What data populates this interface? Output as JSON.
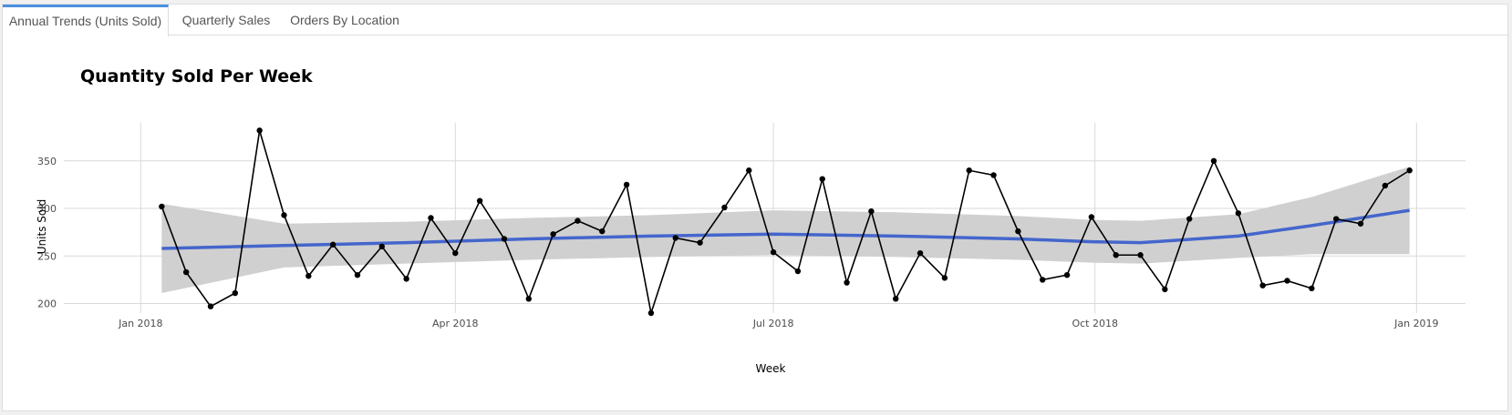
{
  "tabs": [
    {
      "label": "Annual Trends (Units Sold)",
      "active": true
    },
    {
      "label": "Quarterly Sales",
      "active": false
    },
    {
      "label": "Orders By Location",
      "active": false
    }
  ],
  "colors": {
    "tab_accent": "#4a90e2",
    "line": "#000000",
    "trend": "#4466cc",
    "band": "#d0d0d0",
    "grid": "#d9d9d9"
  },
  "chart_data": {
    "type": "line",
    "title": "Quantity Sold Per Week",
    "xlabel": "Week",
    "ylabel": "Units Sold",
    "ylim": [
      190,
      390
    ],
    "xlim": [
      "2017-12-10",
      "2019-01-15"
    ],
    "grid": true,
    "x_ticks": [
      "2018-01-01",
      "2018-04-01",
      "2018-07-01",
      "2018-10-01",
      "2019-01-01"
    ],
    "x_tick_labels": [
      "Jan 2018",
      "Apr 2018",
      "Jul 2018",
      "Oct 2018",
      "Jan 2019"
    ],
    "y_ticks": [
      200,
      250,
      300,
      350
    ],
    "series": [
      {
        "x": [
          "2018-01-07",
          "2018-01-14",
          "2018-01-21",
          "2018-01-28",
          "2018-02-04",
          "2018-02-11",
          "2018-02-18",
          "2018-02-25",
          "2018-03-04",
          "2018-03-11",
          "2018-03-18",
          "2018-03-25",
          "2018-04-01",
          "2018-04-08",
          "2018-04-15",
          "2018-04-22",
          "2018-04-29",
          "2018-05-06",
          "2018-05-13",
          "2018-05-20",
          "2018-05-27",
          "2018-06-03",
          "2018-06-10",
          "2018-06-17",
          "2018-06-24",
          "2018-07-01",
          "2018-07-08",
          "2018-07-15",
          "2018-07-22",
          "2018-07-29",
          "2018-08-05",
          "2018-08-12",
          "2018-08-19",
          "2018-08-26",
          "2018-09-02",
          "2018-09-09",
          "2018-09-16",
          "2018-09-23",
          "2018-09-30",
          "2018-10-07",
          "2018-10-14",
          "2018-10-21",
          "2018-10-28",
          "2018-11-04",
          "2018-11-11",
          "2018-11-18",
          "2018-11-25",
          "2018-12-02",
          "2018-12-09",
          "2018-12-16",
          "2018-12-23",
          "2018-12-30"
        ],
        "values": [
          302,
          233,
          197,
          211,
          382,
          293,
          229,
          262,
          230,
          260,
          226,
          290,
          253,
          308,
          268,
          205,
          273,
          287,
          276,
          325,
          190,
          269,
          264,
          301,
          340,
          254,
          234,
          331,
          222,
          297,
          205,
          253,
          227,
          340,
          335,
          276,
          225,
          230,
          291,
          251,
          251,
          215,
          289,
          350,
          295,
          219,
          224,
          216,
          289,
          284,
          324,
          340
        ]
      },
      {
        "name": "smooth",
        "x": [
          "2018-01-07",
          "2018-02-11",
          "2018-03-18",
          "2018-04-22",
          "2018-05-27",
          "2018-07-01",
          "2018-08-05",
          "2018-09-09",
          "2018-09-30",
          "2018-10-14",
          "2018-11-11",
          "2018-12-02",
          "2018-12-30"
        ],
        "values": [
          258,
          261,
          264,
          268,
          271,
          273,
          271,
          268,
          265,
          264,
          271,
          282,
          298
        ],
        "band_low": [
          211,
          238,
          242,
          246,
          249,
          251,
          249,
          246,
          243,
          242,
          248,
          252,
          252
        ],
        "band_high": [
          305,
          284,
          286,
          290,
          293,
          298,
          296,
          292,
          288,
          287,
          294,
          312,
          344
        ]
      }
    ]
  }
}
